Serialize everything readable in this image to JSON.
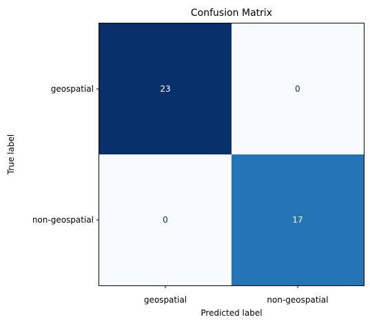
{
  "chart_data": {
    "type": "heatmap",
    "title": "Confusion Matrix",
    "xlabel": "Predicted label",
    "ylabel": "True label",
    "x_categories": [
      "geospatial",
      "non-geospatial"
    ],
    "y_categories": [
      "geospatial",
      "non-geospatial"
    ],
    "values": [
      [
        23,
        0
      ],
      [
        0,
        17
      ]
    ],
    "colormap": "Blues",
    "color_low": "#f7fbff",
    "color_high": "#08306b",
    "value_text_dark": "#08306b",
    "value_text_light": "#ffffff",
    "colorbar": false,
    "grid": false
  }
}
